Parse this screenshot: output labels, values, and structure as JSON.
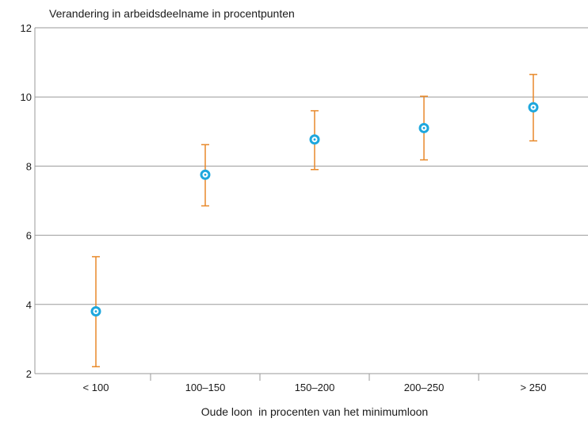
{
  "chart_data": {
    "type": "scatter",
    "title": "Verandering in arbeidsdeelname in procentpunten",
    "xlabel": "Oude loon  in procenten van het minimumloon",
    "ylabel": "",
    "categories": [
      "< 100",
      "100–150",
      "150–200",
      "200–250",
      "> 250"
    ],
    "values": [
      3.8,
      7.75,
      8.77,
      9.1,
      9.7
    ],
    "error_low": [
      2.2,
      6.85,
      7.9,
      8.18,
      8.73
    ],
    "error_high": [
      5.38,
      8.62,
      9.6,
      10.02,
      10.65
    ],
    "ylim": [
      2,
      12
    ],
    "yticks": [
      2,
      4,
      6,
      8,
      10,
      12
    ],
    "grid": true,
    "legend": "none",
    "colors": {
      "marker": "#1ea7dd",
      "error_bar": "#e8892a",
      "grid": "#9a9a9a"
    }
  }
}
